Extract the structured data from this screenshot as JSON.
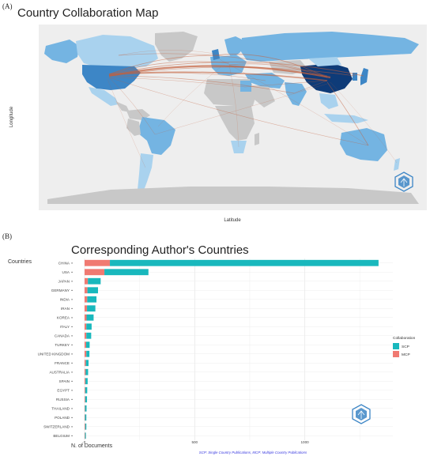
{
  "panel_a": {
    "label": "(A)",
    "title": "Country Collaboration Map",
    "xlabel": "Latitude",
    "ylabel": "Longitude",
    "colors": {
      "background": "#eeeeee",
      "no_data": "#c8c8c8",
      "low": "#a9d2ee",
      "mid": "#74b4e2",
      "high": "#3d86c6",
      "top": "#0e3b78",
      "link": "#c4603c"
    }
  },
  "panel_b": {
    "label": "(B)",
    "caption": "SCP: Single Country Publications, MCP: Multiple Country Publications",
    "colors": {
      "scp": "#19b8bd",
      "mcp": "#f07a72"
    }
  },
  "chart_data": [
    {
      "type": "map",
      "title": "Country Collaboration Map",
      "xlabel": "Latitude",
      "ylabel": "Longitude",
      "highlighted_countries": [
        "CHINA",
        "USA"
      ]
    },
    {
      "type": "bar",
      "orientation": "horizontal",
      "stacked": true,
      "title": "Corresponding Author's Countries",
      "ylabel": "Countries",
      "xlabel": "N. of Documents",
      "xlim": [
        0,
        1400
      ],
      "xticks": [
        0,
        500,
        1000
      ],
      "categories": [
        "CHINA",
        "USA",
        "JAPAN",
        "GERMANY",
        "INDIA",
        "IRAN",
        "KOREA",
        "ITALY",
        "CANADA",
        "TURKEY",
        "UNITED KINGDOM",
        "FRANCE",
        "AUSTRALIA",
        "SPAIN",
        "EGYPT",
        "RUSSIA",
        "THAILAND",
        "POLAND",
        "SWITZERLAND",
        "BELGIUM"
      ],
      "series": [
        {
          "name": "SCP",
          "values": [
            1220,
            200,
            58,
            48,
            42,
            38,
            32,
            24,
            22,
            16,
            14,
            12,
            11,
            10,
            9,
            8,
            7,
            6,
            5,
            4
          ]
        },
        {
          "name": "MCP",
          "values": [
            115,
            90,
            15,
            13,
            12,
            11,
            9,
            8,
            8,
            7,
            8,
            6,
            5,
            4,
            3,
            3,
            2,
            2,
            3,
            2
          ]
        }
      ],
      "legend": {
        "title": "Collaboration",
        "position": "right"
      }
    }
  ]
}
